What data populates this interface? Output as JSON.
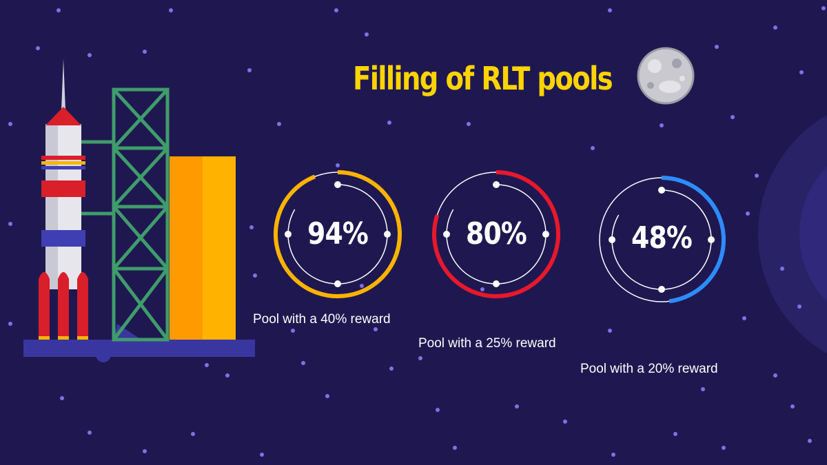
{
  "title": "Filling of RLT pools",
  "pools": [
    {
      "percent_label": "94%",
      "fill": 0.94,
      "label": "Pool with a 40% reward",
      "color": "#ffb300"
    },
    {
      "percent_label": "80%",
      "fill": 0.8,
      "label": "Pool with a 25% reward",
      "color": "#e8182c"
    },
    {
      "percent_label": "48%",
      "fill": 0.48,
      "label": "Pool with a 20% reward",
      "color": "#2d8cff"
    }
  ],
  "colors": {
    "background": "#1f1850",
    "star": "#7d72e6",
    "title": "#ffd400",
    "tower": "#3f9c6b",
    "rocket_body": "#e6e6ec",
    "rocket_red": "#d81f2a",
    "rocket_blue": "#3f3fb3",
    "launch_platform": "#3a36a0",
    "tank_front": "#ffb300",
    "tank_side": "#ff9a00"
  },
  "icons": [
    "rocket-icon",
    "launch-tower-icon",
    "moon-icon",
    "star-dot-icon"
  ]
}
